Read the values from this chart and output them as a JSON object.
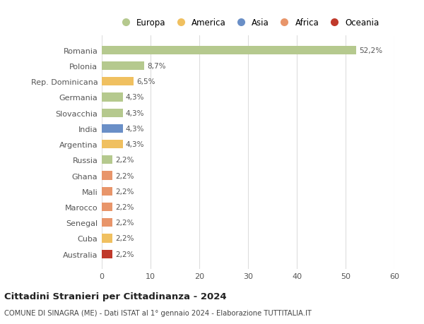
{
  "countries": [
    "Romania",
    "Polonia",
    "Rep. Dominicana",
    "Germania",
    "Slovacchia",
    "India",
    "Argentina",
    "Russia",
    "Ghana",
    "Mali",
    "Marocco",
    "Senegal",
    "Cuba",
    "Australia"
  ],
  "values": [
    52.2,
    8.7,
    6.5,
    4.3,
    4.3,
    4.3,
    4.3,
    2.2,
    2.2,
    2.2,
    2.2,
    2.2,
    2.2,
    2.2
  ],
  "labels": [
    "52,2%",
    "8,7%",
    "6,5%",
    "4,3%",
    "4,3%",
    "4,3%",
    "4,3%",
    "2,2%",
    "2,2%",
    "2,2%",
    "2,2%",
    "2,2%",
    "2,2%",
    "2,2%"
  ],
  "colors": [
    "#b5c98e",
    "#b5c98e",
    "#f0c060",
    "#b5c98e",
    "#b5c98e",
    "#6a8fc7",
    "#f0c060",
    "#b5c98e",
    "#e8956a",
    "#e8956a",
    "#e8956a",
    "#e8956a",
    "#f0c060",
    "#c0392b"
  ],
  "continent_colors": {
    "Europa": "#b5c98e",
    "America": "#f0c060",
    "Asia": "#6a8fc7",
    "Africa": "#e8956a",
    "Oceania": "#c0392b"
  },
  "title": "Cittadini Stranieri per Cittadinanza - 2024",
  "subtitle": "COMUNE DI SINAGRA (ME) - Dati ISTAT al 1° gennaio 2024 - Elaborazione TUTTITALIA.IT",
  "xlim": [
    0,
    60
  ],
  "xticks": [
    0,
    10,
    20,
    30,
    40,
    50,
    60
  ],
  "background_color": "#ffffff",
  "grid_color": "#dddddd",
  "bar_height": 0.55
}
